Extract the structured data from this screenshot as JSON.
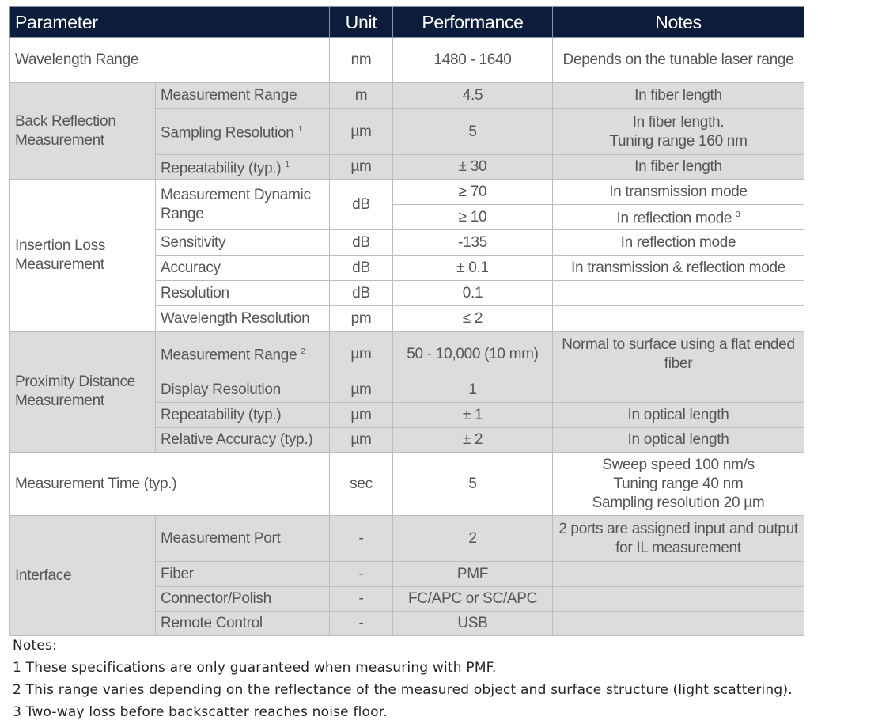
{
  "header": [
    "Parameter",
    "Unit",
    "Performance",
    "Notes"
  ],
  "wavelength": {
    "param": "Wavelength Range",
    "unit": "nm",
    "perf": "1480 - 1640",
    "note": "Depends on the tunable laser range"
  },
  "back_reflection": {
    "group": "Back Reflection Measurement",
    "rows": [
      {
        "param": "Measurement Range",
        "sup": "",
        "unit": "m",
        "perf": "4.5",
        "note": "In fiber length"
      },
      {
        "param": "Sampling Resolution",
        "sup": "1",
        "unit": "µm",
        "perf": "5",
        "note": "In fiber length.",
        "note2": "Tuning range 160 nm"
      },
      {
        "param": "Repeatability (typ.)",
        "sup": "1",
        "unit": "µm",
        "perf": "± 30",
        "note": "In fiber length"
      }
    ]
  },
  "insertion_loss": {
    "group": "Insertion Loss Measurement",
    "rows": [
      {
        "param": "Measurement Dynamic Range",
        "unit": "dB",
        "perf": "≥ 70",
        "note": "In transmission mode",
        "perf2": "≥ 10",
        "note2": "In reflection mode",
        "note2_sup": "3"
      },
      {
        "param": "Sensitivity",
        "unit": "dB",
        "perf": "-135",
        "note": "In reflection mode"
      },
      {
        "param": "Accuracy",
        "unit": "dB",
        "perf": "± 0.1",
        "note": "In transmission & reflection mode"
      },
      {
        "param": "Resolution",
        "unit": "dB",
        "perf": "0.1",
        "note": ""
      },
      {
        "param": "Wavelength Resolution",
        "unit": "pm",
        "perf": "≤ 2",
        "note": ""
      }
    ]
  },
  "proximity": {
    "group": "Proximity Distance Measurement",
    "rows": [
      {
        "param": "Measurement Range",
        "sup": "2",
        "unit": "µm",
        "perf": "50 - 10,000 (10 mm)",
        "note": "Normal to surface using a flat ended fiber"
      },
      {
        "param": "Display Resolution",
        "unit": "µm",
        "perf": "1",
        "note": ""
      },
      {
        "param": "Repeatability (typ.)",
        "unit": "µm",
        "perf": "± 1",
        "note": "In optical length"
      },
      {
        "param": "Relative Accuracy (typ.)",
        "unit": "µm",
        "perf": "± 2",
        "note": "In optical length"
      }
    ]
  },
  "measurement_time": {
    "param": "Measurement Time (typ.)",
    "unit": "sec",
    "perf": "5",
    "notes": [
      "Sweep speed 100 nm/s",
      "Tuning range 40 nm",
      "Sampling resolution 20 µm"
    ]
  },
  "interface": {
    "group": "Interface",
    "rows": [
      {
        "param": "Measurement Port",
        "unit": "-",
        "perf": "2",
        "note": "2 ports are assigned input and output for IL measurement"
      },
      {
        "param": "Fiber",
        "unit": "-",
        "perf": "PMF",
        "note": ""
      },
      {
        "param": "Connector/Polish",
        "unit": "-",
        "perf": "FC/APC or SC/APC",
        "note": ""
      },
      {
        "param": "Remote Control",
        "unit": "-",
        "perf": "USB",
        "note": ""
      }
    ]
  },
  "footnotes": {
    "title": "Notes:",
    "items": [
      "1 These specifications are only guaranteed when measuring with PMF.",
      "2 This range varies depending on the reflectance of the measured object and surface structure (light scattering).",
      "3 Two-way loss before backscatter reaches noise floor."
    ]
  }
}
